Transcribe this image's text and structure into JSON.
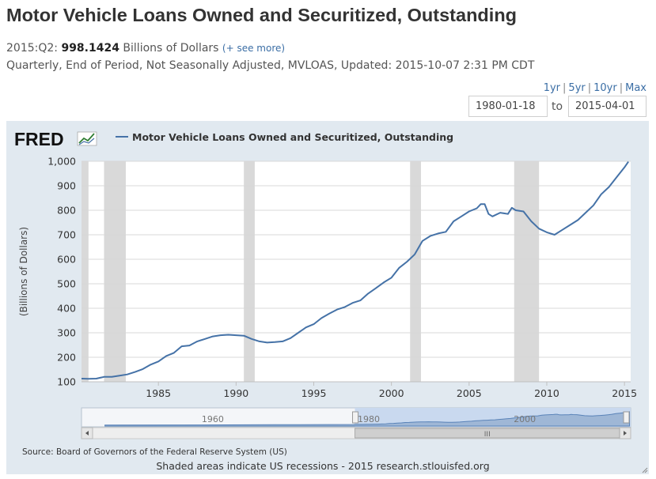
{
  "header": {
    "title": "Motor Vehicle Loans Owned and Securitized, Outstanding",
    "latest_period": "2015:Q2:",
    "latest_value": "998.1424",
    "units": "Billions of Dollars",
    "see_more": "(+ see more)",
    "details": "Quarterly, End of Period, Not Seasonally Adjusted, MVLOAS, Updated: 2015-10-07 2:31 PM CDT"
  },
  "controls": {
    "ranges": [
      "1yr",
      "5yr",
      "10yr",
      "Max"
    ],
    "start_date": "1980-01-18",
    "to_label": "to",
    "end_date": "2015-04-01"
  },
  "brand": {
    "logo": "FRED"
  },
  "footer": {
    "source": "Source: Board of Governors of the Federal Reserve System (US)",
    "note": "Shaded areas indicate US recessions - 2015 research.stlouisfed.org"
  },
  "navigator": {
    "labels": [
      "1960",
      "1980",
      "2000"
    ],
    "scroll_grip": "III"
  },
  "colors": {
    "series": "#4572a7",
    "recession": "#d9d9d9",
    "panel": "#e1e9f0",
    "plot_bg": "#ffffff"
  },
  "chart_data": {
    "type": "line",
    "title": "",
    "xlabel": "",
    "ylabel": "(Billions of Dollars)",
    "ylim": [
      100,
      1000
    ],
    "yticks": [
      100,
      200,
      300,
      400,
      500,
      600,
      700,
      800,
      900,
      1000
    ],
    "xlim": [
      1980.05,
      2015.4
    ],
    "xticks": [
      1985,
      1990,
      1995,
      2000,
      2005,
      2010,
      2015
    ],
    "grid": true,
    "legend": "top-left",
    "recessions": [
      [
        1980.0,
        1980.5
      ],
      [
        1981.5,
        1982.9
      ],
      [
        1990.5,
        1991.2
      ],
      [
        2001.2,
        2001.9
      ],
      [
        2007.9,
        2009.5
      ]
    ],
    "series": [
      {
        "name": "Motor Vehicle Loans Owned and Securitized, Outstanding",
        "x": [
          1980.0,
          1980.5,
          1981.0,
          1981.5,
          1982.0,
          1982.5,
          1983.0,
          1983.5,
          1984.0,
          1984.5,
          1985.0,
          1985.5,
          1986.0,
          1986.5,
          1987.0,
          1987.5,
          1988.0,
          1988.5,
          1989.0,
          1989.5,
          1990.0,
          1990.5,
          1991.0,
          1991.5,
          1992.0,
          1992.5,
          1993.0,
          1993.5,
          1994.0,
          1994.5,
          1995.0,
          1995.5,
          1996.0,
          1996.5,
          1997.0,
          1997.5,
          1998.0,
          1998.5,
          1999.0,
          1999.5,
          2000.0,
          2000.5,
          2001.0,
          2001.5,
          2002.0,
          2002.5,
          2003.0,
          2003.5,
          2004.0,
          2004.5,
          2005.0,
          2005.5,
          2005.75,
          2006.0,
          2006.25,
          2006.5,
          2007.0,
          2007.5,
          2007.75,
          2008.0,
          2008.5,
          2009.0,
          2009.5,
          2010.0,
          2010.5,
          2011.0,
          2011.5,
          2012.0,
          2012.5,
          2013.0,
          2013.5,
          2014.0,
          2014.5,
          2015.0,
          2015.25
        ],
        "values": [
          113,
          112,
          113,
          120,
          120,
          125,
          130,
          140,
          152,
          170,
          183,
          205,
          218,
          245,
          248,
          265,
          275,
          285,
          290,
          292,
          290,
          288,
          275,
          265,
          260,
          262,
          265,
          278,
          300,
          322,
          335,
          360,
          378,
          395,
          405,
          422,
          432,
          460,
          482,
          505,
          525,
          565,
          590,
          620,
          675,
          695,
          705,
          712,
          755,
          775,
          795,
          808,
          825,
          825,
          785,
          775,
          790,
          785,
          810,
          800,
          795,
          755,
          725,
          710,
          700,
          720,
          740,
          760,
          790,
          820,
          865,
          895,
          935,
          975,
          998
        ]
      }
    ]
  }
}
